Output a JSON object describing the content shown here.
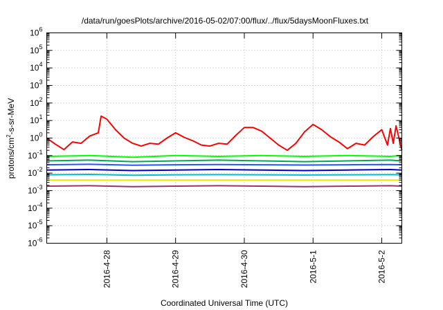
{
  "chart_data": {
    "type": "line",
    "title": "/data/run/goesPlots/archive/2016-05-02/07:00/flux/../flux/5daysMoonFluxes.txt",
    "xlabel": "Coordinated Universal Time (UTC)",
    "ylabel": {
      "prefix": "protons/cm",
      "sup": "2",
      "suffix": "-s-sr-MeV"
    },
    "yscale": "log",
    "ylim_exponents": [
      -6,
      6
    ],
    "y_tick_labels": [
      {
        "base": "10",
        "exp": "-6"
      },
      {
        "base": "10",
        "exp": "-5"
      },
      {
        "base": "10",
        "exp": "-4"
      },
      {
        "base": "10",
        "exp": "-3"
      },
      {
        "base": "10",
        "exp": "-2"
      },
      {
        "base": "10",
        "exp": "-1"
      },
      {
        "base": "10",
        "exp": "0"
      },
      {
        "base": "10",
        "exp": "1"
      },
      {
        "base": "10",
        "exp": "2"
      },
      {
        "base": "10",
        "exp": "3"
      },
      {
        "base": "10",
        "exp": "4"
      },
      {
        "base": "10",
        "exp": "5"
      },
      {
        "base": "10",
        "exp": "6"
      }
    ],
    "xlim": [
      "2016-04-27 03:00",
      "2016-05-02 07:00"
    ],
    "x_tick_labels": [
      "2016-4-28",
      "2016-4-29",
      "2016-4-30",
      "2016-5-1",
      "2016-5-2"
    ],
    "x_ticks": [
      "2016-04-28",
      "2016-04-29",
      "2016-04-30",
      "2016-05-01",
      "2016-05-02"
    ],
    "grid": true,
    "series": [
      {
        "color": "#ff0000",
        "x": [
          "2016-04-27 03:00",
          "2016-04-27 06:00",
          "2016-04-27 09:00",
          "2016-04-27 12:00",
          "2016-04-27 15:00",
          "2016-04-27 18:00",
          "2016-04-27 21:00",
          "2016-04-27 22:00",
          "2016-04-28 00:00",
          "2016-04-28 03:00",
          "2016-04-28 06:00",
          "2016-04-28 09:00",
          "2016-04-28 12:00",
          "2016-04-28 15:00",
          "2016-04-28 18:00",
          "2016-04-28 21:00",
          "2016-04-29 00:00",
          "2016-04-29 03:00",
          "2016-04-29 06:00",
          "2016-04-29 09:00",
          "2016-04-29 12:00",
          "2016-04-29 15:00",
          "2016-04-29 18:00",
          "2016-04-29 21:00",
          "2016-04-30 00:00",
          "2016-04-30 03:00",
          "2016-04-30 06:00",
          "2016-04-30 09:00",
          "2016-04-30 12:00",
          "2016-04-30 15:00",
          "2016-04-30 18:00",
          "2016-04-30 21:00",
          "2016-05-01 00:00",
          "2016-05-01 03:00",
          "2016-05-01 06:00",
          "2016-05-01 09:00",
          "2016-05-01 12:00",
          "2016-05-01 15:00",
          "2016-05-01 18:00",
          "2016-05-01 21:00",
          "2016-05-02 00:00",
          "2016-05-02 02:00",
          "2016-05-02 03:00",
          "2016-05-02 04:00",
          "2016-05-02 05:00",
          "2016-05-02 07:00"
        ],
        "values": [
          1.0,
          0.45,
          0.22,
          0.6,
          0.5,
          1.3,
          2.0,
          18,
          12,
          3,
          1.0,
          0.5,
          0.35,
          0.5,
          0.45,
          1.0,
          2.0,
          1.1,
          0.7,
          0.4,
          0.35,
          0.5,
          0.45,
          1.4,
          4.0,
          4.0,
          2.5,
          1.0,
          0.4,
          0.2,
          0.5,
          2.2,
          6.0,
          3.0,
          1.2,
          0.6,
          0.25,
          0.5,
          0.4,
          1.2,
          3.0,
          0.4,
          3.5,
          0.5,
          5.0,
          0.2
        ]
      },
      {
        "color": "#00ff00",
        "x": [
          "2016-04-27 03:00",
          "2016-04-27 18:00",
          "2016-04-28 09:00",
          "2016-04-29 00:00",
          "2016-04-29 15:00",
          "2016-04-30 06:00",
          "2016-04-30 21:00",
          "2016-05-01 12:00",
          "2016-05-02 03:00",
          "2016-05-02 07:00"
        ],
        "values": [
          0.09,
          0.1,
          0.08,
          0.1,
          0.09,
          0.1,
          0.09,
          0.1,
          0.09,
          0.1
        ]
      },
      {
        "color": "#00aa55",
        "x": [
          "2016-04-27 03:00",
          "2016-04-27 18:00",
          "2016-04-28 09:00",
          "2016-04-29 00:00",
          "2016-04-29 15:00",
          "2016-04-30 06:00",
          "2016-04-30 21:00",
          "2016-05-01 12:00",
          "2016-05-02 03:00",
          "2016-05-02 07:00"
        ],
        "values": [
          0.05,
          0.055,
          0.045,
          0.05,
          0.055,
          0.05,
          0.045,
          0.05,
          0.055,
          0.05
        ]
      },
      {
        "color": "#2255ff",
        "x": [
          "2016-04-27 03:00",
          "2016-04-27 18:00",
          "2016-04-28 09:00",
          "2016-04-29 00:00",
          "2016-04-29 15:00",
          "2016-04-30 06:00",
          "2016-04-30 21:00",
          "2016-05-01 12:00",
          "2016-05-02 03:00",
          "2016-05-02 07:00"
        ],
        "values": [
          0.03,
          0.032,
          0.028,
          0.03,
          0.031,
          0.03,
          0.029,
          0.03,
          0.031,
          0.03
        ]
      },
      {
        "color": "#0000cc",
        "x": [
          "2016-04-27 03:00",
          "2016-04-27 18:00",
          "2016-04-28 09:00",
          "2016-04-29 00:00",
          "2016-04-29 15:00",
          "2016-04-30 06:00",
          "2016-04-30 21:00",
          "2016-05-01 12:00",
          "2016-05-02 03:00",
          "2016-05-02 07:00"
        ],
        "values": [
          0.015,
          0.016,
          0.014,
          0.015,
          0.016,
          0.015,
          0.014,
          0.015,
          0.016,
          0.015
        ]
      },
      {
        "color": "#00bbcc",
        "x": [
          "2016-04-27 03:00",
          "2016-04-27 18:00",
          "2016-04-28 09:00",
          "2016-04-29 00:00",
          "2016-04-29 15:00",
          "2016-04-30 06:00",
          "2016-04-30 21:00",
          "2016-05-01 12:00",
          "2016-05-02 03:00",
          "2016-05-02 07:00"
        ],
        "values": [
          0.008,
          0.0085,
          0.0075,
          0.008,
          0.0082,
          0.008,
          0.0078,
          0.008,
          0.0082,
          0.008
        ]
      },
      {
        "color": "#e8e800",
        "x": [
          "2016-04-27 03:00",
          "2016-04-27 18:00",
          "2016-04-28 09:00",
          "2016-04-29 00:00",
          "2016-04-29 15:00",
          "2016-04-30 06:00",
          "2016-04-30 21:00",
          "2016-05-01 12:00",
          "2016-05-02 03:00",
          "2016-05-02 07:00"
        ],
        "values": [
          0.004,
          0.004,
          0.004,
          0.004,
          0.004,
          0.004,
          0.004,
          0.004,
          0.004,
          0.004
        ]
      },
      {
        "color": "#993366",
        "x": [
          "2016-04-27 03:00",
          "2016-04-27 18:00",
          "2016-04-28 09:00",
          "2016-04-29 00:00",
          "2016-04-29 15:00",
          "2016-04-30 06:00",
          "2016-04-30 21:00",
          "2016-05-01 12:00",
          "2016-05-02 03:00",
          "2016-05-02 07:00"
        ],
        "values": [
          0.0018,
          0.0019,
          0.0017,
          0.0018,
          0.0019,
          0.0018,
          0.0017,
          0.0018,
          0.0019,
          0.0018
        ]
      }
    ]
  }
}
